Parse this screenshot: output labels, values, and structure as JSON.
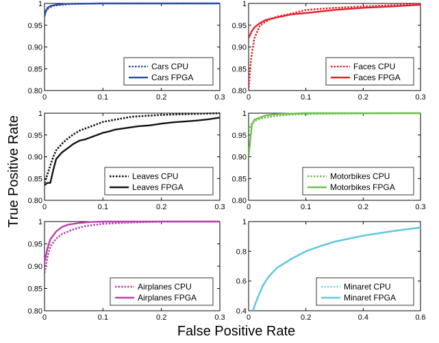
{
  "figure": {
    "xlabel": "False Positive Rate",
    "ylabel": "True Positive Rate"
  },
  "chart_data": [
    {
      "type": "line",
      "xlim": [
        0,
        0.3
      ],
      "ylim": [
        0.8,
        1.0
      ],
      "xticks": [
        "0",
        "0.1",
        "0.2",
        "0.3"
      ],
      "yticks": [
        "0.80",
        "0.85",
        "0.90",
        "0.95",
        "1"
      ],
      "legend_position": "bottom-right",
      "series": [
        {
          "name": "Cars CPU",
          "color": "#2a4fa8",
          "style": "dotted",
          "x": [
            0,
            0.003,
            0.008,
            0.015,
            0.03,
            0.05,
            0.1,
            0.3
          ],
          "y": [
            0.975,
            0.985,
            0.99,
            0.995,
            0.997,
            0.999,
            1.0,
            1.0
          ]
        },
        {
          "name": "Cars FPGA",
          "color": "#2a4fa8",
          "style": "solid",
          "x": [
            0,
            0.002,
            0.005,
            0.01,
            0.02,
            0.04,
            0.1,
            0.3
          ],
          "y": [
            0.97,
            0.98,
            0.99,
            0.994,
            0.997,
            0.999,
            1.0,
            1.0
          ]
        }
      ]
    },
    {
      "type": "line",
      "xlim": [
        0,
        0.3
      ],
      "ylim": [
        0.8,
        1.0
      ],
      "xticks": [
        "0",
        "0.1",
        "0.2",
        "0.3"
      ],
      "yticks": [
        "0.80",
        "0.85",
        "0.90",
        "0.95",
        "1"
      ],
      "legend_position": "bottom-right",
      "series": [
        {
          "name": "Faces CPU",
          "color": "#e8202a",
          "style": "dotted",
          "x": [
            0,
            0.004,
            0.01,
            0.02,
            0.035,
            0.05,
            0.08,
            0.1,
            0.15,
            0.2,
            0.25,
            0.3
          ],
          "y": [
            0.8,
            0.87,
            0.92,
            0.95,
            0.962,
            0.97,
            0.978,
            0.985,
            0.99,
            0.993,
            0.996,
            0.998
          ]
        },
        {
          "name": "Faces FPGA",
          "color": "#e8202a",
          "style": "solid",
          "x": [
            0,
            0.005,
            0.01,
            0.02,
            0.03,
            0.05,
            0.075,
            0.1,
            0.15,
            0.2,
            0.25,
            0.3
          ],
          "y": [
            0.92,
            0.935,
            0.945,
            0.955,
            0.962,
            0.968,
            0.975,
            0.978,
            0.985,
            0.99,
            0.993,
            0.997
          ]
        }
      ]
    },
    {
      "type": "line",
      "xlim": [
        0,
        0.3
      ],
      "ylim": [
        0.8,
        1.0
      ],
      "xticks": [
        "0",
        "0.1",
        "0.2",
        "0.3"
      ],
      "yticks": [
        "0.80",
        "0.85",
        "0.90",
        "0.95",
        "1"
      ],
      "legend_position": "bottom-right",
      "series": [
        {
          "name": "Leaves CPU",
          "color": "#111111",
          "style": "dotted",
          "x": [
            0,
            0.005,
            0.01,
            0.015,
            0.02,
            0.03,
            0.04,
            0.05,
            0.06,
            0.08,
            0.1,
            0.12,
            0.15,
            0.2,
            0.25,
            0.3
          ],
          "y": [
            0.84,
            0.86,
            0.88,
            0.9,
            0.915,
            0.93,
            0.942,
            0.952,
            0.96,
            0.97,
            0.98,
            0.985,
            0.992,
            0.996,
            0.998,
            1.0
          ]
        },
        {
          "name": "Leaves FPGA",
          "color": "#111111",
          "style": "solid",
          "x": [
            0,
            0.005,
            0.01,
            0.015,
            0.02,
            0.03,
            0.04,
            0.05,
            0.06,
            0.07,
            0.08,
            0.09,
            0.1,
            0.11,
            0.12,
            0.14,
            0.16,
            0.18,
            0.2,
            0.22,
            0.24,
            0.26,
            0.28,
            0.3
          ],
          "y": [
            0.835,
            0.84,
            0.84,
            0.87,
            0.895,
            0.91,
            0.92,
            0.93,
            0.937,
            0.94,
            0.945,
            0.95,
            0.955,
            0.958,
            0.962,
            0.966,
            0.97,
            0.972,
            0.976,
            0.979,
            0.981,
            0.983,
            0.986,
            0.99
          ]
        }
      ]
    },
    {
      "type": "line",
      "xlim": [
        0,
        0.3
      ],
      "ylim": [
        0.8,
        1.0
      ],
      "xticks": [
        "0",
        "0.1",
        "0.2",
        "0.3"
      ],
      "yticks": [
        "0.80",
        "0.85",
        "0.90",
        "0.95",
        "1"
      ],
      "legend_position": "bottom-right",
      "series": [
        {
          "name": "Motorbikes CPU",
          "color": "#6cc04a",
          "style": "dotted",
          "x": [
            0,
            0.005,
            0.01,
            0.02,
            0.03,
            0.05,
            0.08,
            0.1,
            0.15,
            0.3
          ],
          "y": [
            0.96,
            0.975,
            0.982,
            0.987,
            0.99,
            0.994,
            0.997,
            0.998,
            0.999,
            1.0
          ]
        },
        {
          "name": "Motorbikes FPGA",
          "color": "#6cc04a",
          "style": "solid",
          "x": [
            0,
            0.003,
            0.006,
            0.01,
            0.02,
            0.03,
            0.05,
            0.1,
            0.3
          ],
          "y": [
            0.9,
            0.94,
            0.975,
            0.985,
            0.99,
            0.995,
            0.998,
            1.0,
            1.0
          ]
        }
      ]
    },
    {
      "type": "line",
      "xlim": [
        0,
        0.3
      ],
      "ylim": [
        0.8,
        1.0
      ],
      "xticks": [
        "0",
        "0.1",
        "0.2",
        "0.3"
      ],
      "yticks": [
        "0.80",
        "0.85",
        "0.90",
        "0.95",
        "1"
      ],
      "legend_position": "bottom-right",
      "series": [
        {
          "name": "Airplanes CPU",
          "color": "#b83ea8",
          "style": "dotted",
          "x": [
            0,
            0.005,
            0.01,
            0.02,
            0.03,
            0.05,
            0.07,
            0.1,
            0.15,
            0.2,
            0.3
          ],
          "y": [
            0.885,
            0.92,
            0.945,
            0.962,
            0.972,
            0.983,
            0.99,
            0.995,
            0.998,
            1.0,
            1.0
          ]
        },
        {
          "name": "Airplanes FPGA",
          "color": "#b83ea8",
          "style": "solid",
          "x": [
            0,
            0.005,
            0.01,
            0.02,
            0.03,
            0.04,
            0.06,
            0.08,
            0.1,
            0.15,
            0.3
          ],
          "y": [
            0.91,
            0.94,
            0.96,
            0.978,
            0.988,
            0.993,
            0.997,
            0.999,
            1.0,
            1.0,
            1.0
          ]
        }
      ]
    },
    {
      "type": "line",
      "xlim": [
        0,
        0.6
      ],
      "ylim": [
        0.4,
        1.0
      ],
      "xticks": [
        "0",
        "0.2",
        "0.4",
        "0.6"
      ],
      "yticks": [
        "0.4",
        "0.6",
        "0.8",
        "1"
      ],
      "legend_position": "bottom-right",
      "series": [
        {
          "name": "Minaret CPU",
          "color": "#7fd3e8",
          "style": "dotted",
          "x": [
            0.015,
            0.02,
            0.03,
            0.05,
            0.07,
            0.1,
            0.15,
            0.2,
            0.25,
            0.3,
            0.35,
            0.4,
            0.45,
            0.5,
            0.55,
            0.6
          ],
          "y": [
            0.4,
            0.43,
            0.48,
            0.57,
            0.63,
            0.69,
            0.75,
            0.8,
            0.835,
            0.865,
            0.885,
            0.905,
            0.92,
            0.935,
            0.948,
            0.96
          ]
        },
        {
          "name": "Minaret FPGA",
          "color": "#5ec7e0",
          "style": "solid",
          "x": [
            0.015,
            0.02,
            0.03,
            0.05,
            0.07,
            0.1,
            0.15,
            0.2,
            0.25,
            0.3,
            0.35,
            0.4,
            0.45,
            0.5,
            0.55,
            0.6
          ],
          "y": [
            0.4,
            0.43,
            0.48,
            0.57,
            0.63,
            0.69,
            0.75,
            0.8,
            0.835,
            0.865,
            0.885,
            0.905,
            0.92,
            0.935,
            0.948,
            0.96
          ]
        }
      ]
    }
  ]
}
